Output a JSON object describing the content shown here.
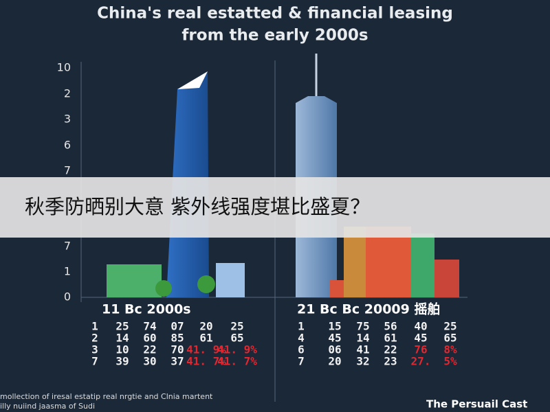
{
  "header": {
    "title_lines": [
      "China's real estatted & financial leasing",
      "from the early 2000s"
    ]
  },
  "axis_labels": [
    "10",
    "2",
    "3",
    "6",
    "7",
    "7",
    "1",
    "0"
  ],
  "banner": {
    "text": "秋季防晒别大意 紫外线强度堪比盛夏？"
  },
  "left_panel": {
    "caption": "11 Bc 2000s",
    "rows": [
      [
        "1",
        "25",
        "74",
        "07",
        "20",
        "25"
      ],
      [
        "2",
        "14",
        "60",
        "85",
        "61",
        "65"
      ],
      [
        "3",
        "10",
        "22",
        "70",
        "41. 9%",
        "41. 9%"
      ],
      [
        "7",
        "39",
        "30",
        "37",
        "41. 7%",
        "41. 7%"
      ]
    ]
  },
  "right_panel": {
    "caption": "21 Bc Bc 20009 摇舶",
    "rows": [
      [
        "1",
        "15",
        "75",
        "56",
        "40",
        "25"
      ],
      [
        "4",
        "45",
        "14",
        "61",
        "45",
        "65"
      ],
      [
        "6",
        "06",
        "41",
        "22",
        "76",
        "8%"
      ],
      [
        "7",
        "20",
        "32",
        "23",
        "27.",
        "5%"
      ]
    ]
  },
  "footer": {
    "lines": [
      "mollection of iresal estatip real nrgtie and Clnia martent",
      "illy nuiind jaasma of Sudi"
    ],
    "brand": "The Persuail Cast"
  }
}
